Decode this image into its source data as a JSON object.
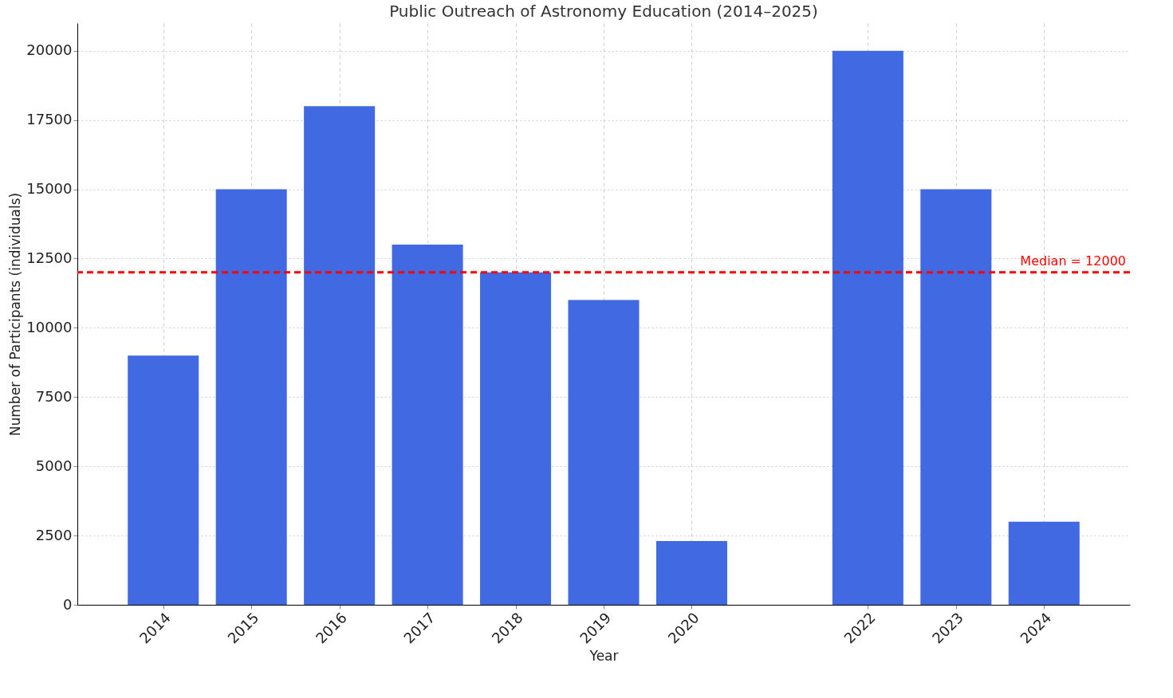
{
  "chart_data": {
    "type": "bar",
    "title": "Public Outreach of Astronomy Education (2014–2025)",
    "xlabel": "Year",
    "ylabel": "Number of Participants (individuals)",
    "x": [
      2014,
      2015,
      2016,
      2017,
      2018,
      2019,
      2020,
      2022,
      2023,
      2024
    ],
    "values": [
      9000,
      15000,
      18000,
      13000,
      12000,
      11000,
      2300,
      20000,
      15000,
      3000
    ],
    "color": "#4169e1",
    "xlim": [
      2013.07,
      2024.93
    ],
    "xticks": [
      2014,
      2015,
      2016,
      2017,
      2018,
      2019,
      2020,
      2022,
      2023,
      2024
    ],
    "ylim": [
      0,
      21000
    ],
    "yticks": [
      0,
      2500,
      5000,
      7500,
      10000,
      12500,
      15000,
      17500,
      20000
    ],
    "grid": true,
    "ref_lines": [
      {
        "axis": "y",
        "value": 12000,
        "label": "Median = 12000",
        "color": "#ff0000",
        "line_style": "dashed"
      }
    ]
  }
}
